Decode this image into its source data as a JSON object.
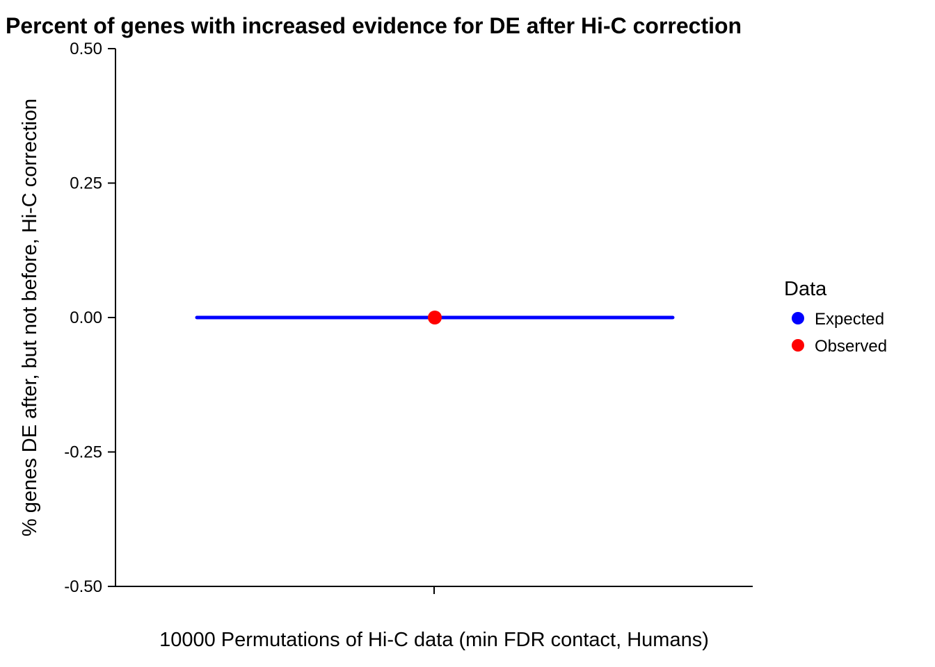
{
  "chart_data": {
    "type": "scatter",
    "title": "Percent of genes with increased evidence for DE after Hi-C correction",
    "xlabel": "10000 Permutations of Hi-C data (min FDR contact, Humans)",
    "ylabel": "% genes DE after, but not before, Hi-C correction",
    "ylim": [
      -0.5,
      0.5
    ],
    "yticks": [
      "0.50",
      "0.25",
      "0.00",
      "-0.25",
      "-0.50"
    ],
    "ytick_values": [
      0.5,
      0.25,
      0.0,
      -0.25,
      -0.5
    ],
    "grid": false,
    "legend_position": "right",
    "legend": {
      "title": "Data",
      "entries": [
        {
          "label": "Expected",
          "color": "#0000ff"
        },
        {
          "label": "Observed",
          "color": "#ff0000"
        }
      ]
    },
    "series": [
      {
        "name": "Expected",
        "type": "horizontal-range",
        "y": 0.0,
        "color": "#0000ff"
      },
      {
        "name": "Observed",
        "type": "point",
        "y": 0.0,
        "color": "#ff0000"
      }
    ]
  }
}
